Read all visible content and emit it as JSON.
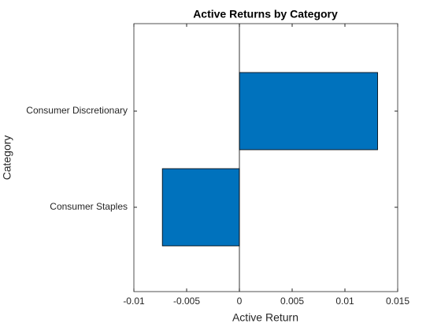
{
  "chart_data": {
    "type": "barh",
    "title": "Active Returns by Category",
    "xlabel": "Active Return",
    "ylabel": "Category",
    "categories": [
      "Consumer Discretionary",
      "Consumer Staples"
    ],
    "values": [
      0.0131,
      -0.0073
    ],
    "color": "#0072bd",
    "xlim": [
      -0.01,
      0.015
    ],
    "xticks": [
      -0.01,
      -0.005,
      0,
      0.005,
      0.01,
      0.015
    ],
    "grid": false
  }
}
